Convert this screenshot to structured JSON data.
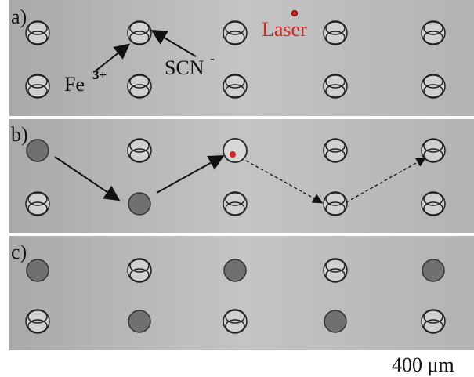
{
  "panels": [
    {
      "label": "a)"
    },
    {
      "label": "b)"
    },
    {
      "label": "c)"
    }
  ],
  "annotations": {
    "laser": "Laser",
    "fe": "Fe",
    "fe_charge": "3+",
    "scn": "SCN",
    "scn_charge": "-"
  },
  "scale_bar": "400 μm"
}
